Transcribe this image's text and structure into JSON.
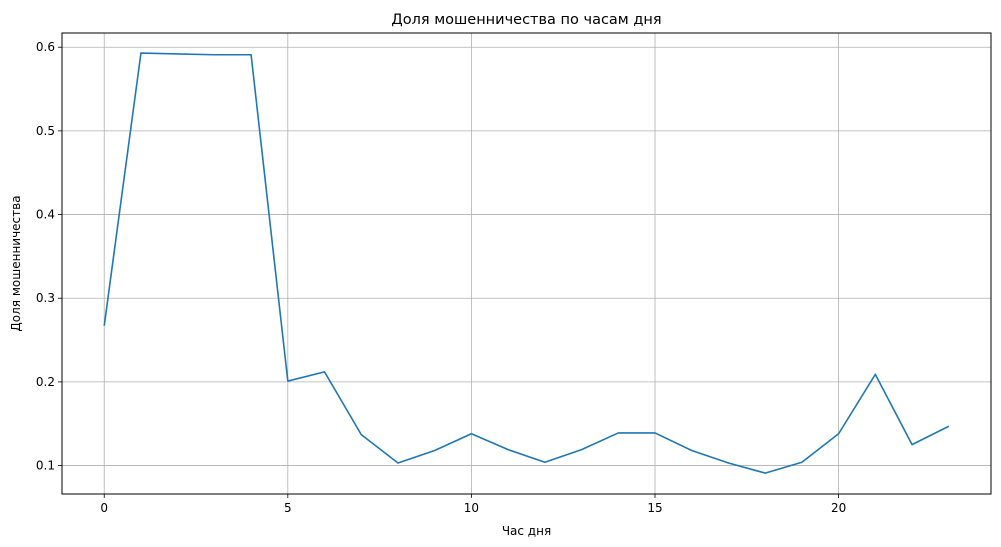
{
  "chart_data": {
    "type": "line",
    "title": "Доля мошенничества по часам дня",
    "xlabel": "Час дня",
    "ylabel": "Доля мошенничества",
    "xlim": [
      -1.15,
      24.15
    ],
    "ylim": [
      0.066,
      0.617
    ],
    "xticks": [
      0,
      5,
      10,
      15,
      20
    ],
    "yticks": [
      0.1,
      0.2,
      0.3,
      0.4,
      0.5,
      0.6
    ],
    "grid": true,
    "series": [
      {
        "color": "#1f77b4",
        "x": [
          0,
          1,
          2,
          3,
          4,
          5,
          6,
          7,
          8,
          9,
          10,
          11,
          12,
          13,
          14,
          15,
          16,
          17,
          18,
          19,
          20,
          21,
          22,
          23
        ],
        "y": [
          0.267,
          0.593,
          0.592,
          0.591,
          0.591,
          0.201,
          0.212,
          0.137,
          0.103,
          0.118,
          0.138,
          0.119,
          0.104,
          0.119,
          0.139,
          0.139,
          0.118,
          0.103,
          0.091,
          0.104,
          0.138,
          0.209,
          0.125,
          0.147
        ]
      }
    ]
  }
}
